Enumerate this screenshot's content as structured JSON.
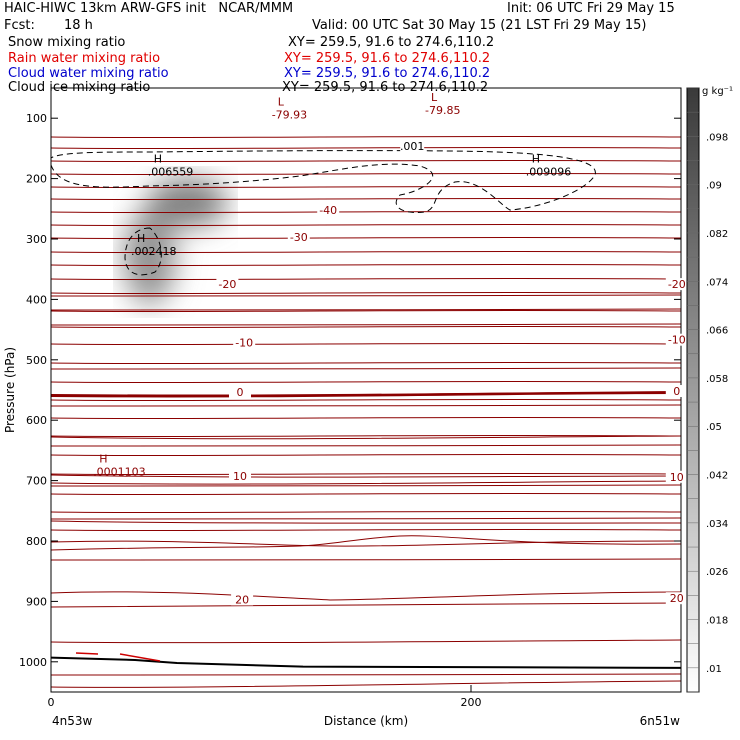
{
  "header": {
    "title": "HAIC-HIWC 13km ARW-GFS init   NCAR/MMM",
    "init": "Init: 06 UTC Fri 29 May 15",
    "fcst_label": "Fcst:",
    "fcst_value": "18 h",
    "valid": "Valid: 00 UTC Sat 30 May 15 (21 LST Fri 29 May 15)"
  },
  "legend": [
    {
      "name": "Snow mixing ratio",
      "color": "#000000",
      "xy": "XY= 259.5, 91.6 to 274.6,110.2"
    },
    {
      "name": "Rain water mixing ratio",
      "color": "#e00000",
      "xy": "XY= 259.5, 91.6 to 274.6,110.2"
    },
    {
      "name": "Cloud water mixing ratio",
      "color": "#0000cc",
      "xy": "XY= 259.5, 91.6 to 274.6,110.2"
    },
    {
      "name": "Cloud ice mixing ratio",
      "color": "#000000",
      "xy": "XY= 259.5, 91.6 to 274.6,110.2"
    }
  ],
  "chart_data": {
    "type": "heatmap",
    "xlabel": "Distance (km)",
    "ylabel": "Pressure (hPa)",
    "xlim": [
      0,
      300
    ],
    "ylim": [
      1050,
      50
    ],
    "xticks": [
      0,
      200
    ],
    "yticks": [
      100,
      200,
      300,
      400,
      500,
      600,
      700,
      800,
      900,
      1000
    ],
    "left_end_label": "4n53w",
    "right_end_label": "6n51w",
    "colorbar": {
      "unit": "g kg⁻¹",
      "ticks": [
        ".01",
        ".018",
        ".026",
        ".034",
        ".042",
        ".05",
        ".058",
        ".066",
        ".074",
        ".082",
        ".09",
        ".098"
      ],
      "min": 0.006,
      "max": 0.106
    },
    "shaded_maxima": [
      {
        "x": 47,
        "p": 330,
        "value": 0.06
      },
      {
        "x": 65,
        "p": 240,
        "value": 0.07
      }
    ],
    "temperature_labels": [
      {
        "text": "-40",
        "x": 132,
        "p": 255
      },
      {
        "text": "-30",
        "x": 118,
        "p": 300
      },
      {
        "text": "-20",
        "x": 84,
        "p": 378
      },
      {
        "text": "-20",
        "x": 298,
        "p": 378
      },
      {
        "text": "-10",
        "x": 92,
        "p": 475
      },
      {
        "text": "-10",
        "x": 298,
        "p": 470
      },
      {
        "text": "0",
        "x": 90,
        "p": 557
      },
      {
        "text": "0",
        "x": 298,
        "p": 555
      },
      {
        "text": "10",
        "x": 90,
        "p": 696
      },
      {
        "text": "10",
        "x": 298,
        "p": 697
      },
      {
        "text": "20",
        "x": 91,
        "p": 900
      },
      {
        "text": "20",
        "x": 298,
        "p": 898
      }
    ],
    "extrema_labels": [
      {
        "mark": "L",
        "value": "-79.93",
        "x": 107,
        "p": 92,
        "color": "#8b0000"
      },
      {
        "mark": "L",
        "value": "-79.85",
        "x": 180,
        "p": 85,
        "color": "#8b0000"
      },
      {
        "mark": "H",
        "value": ".006559",
        "x": 48,
        "p": 187,
        "color": "#000000"
      },
      {
        "mark": "H",
        "value": ".009096",
        "x": 228,
        "p": 187,
        "color": "#000000"
      },
      {
        "mark": "H",
        "value": ".002418",
        "x": 40,
        "p": 318,
        "color": "#000000"
      },
      {
        "mark": "H",
        "value": ".0001103",
        "x": 22,
        "p": 683,
        "color": "#8b0000"
      }
    ],
    "contour_labels": [
      {
        "text": ".001",
        "x": 172,
        "p": 149
      }
    ],
    "terrain_pressure": [
      {
        "x": 0,
        "p": 993
      },
      {
        "x": 40,
        "p": 997
      },
      {
        "x": 60,
        "p": 1002
      },
      {
        "x": 120,
        "p": 1008
      },
      {
        "x": 300,
        "p": 1010
      }
    ]
  }
}
